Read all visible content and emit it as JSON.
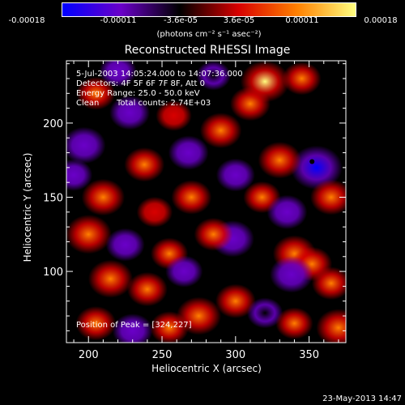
{
  "chart_data": {
    "type": "heatmap",
    "title": "Reconstructed RHESSI Image",
    "xlabel": "Heliocentric X (arcsec)",
    "ylabel": "Heliocentric Y (arcsec)",
    "xlim": [
      185,
      375
    ],
    "ylim": [
      52,
      242
    ],
    "xticks": [
      200,
      250,
      300,
      350
    ],
    "yticks": [
      100,
      150,
      200
    ],
    "colorbar": {
      "ticks": [
        "-0.00018",
        "-0.00011",
        "-3.6e-05",
        "3.6e-05",
        "0.00011",
        "0.00018"
      ],
      "range": [
        -0.00018,
        0.00018
      ],
      "unit": "(photons cm⁻² s⁻¹ asec⁻²)",
      "colormap": [
        "#0000ff",
        "#6a00c8",
        "#000000",
        "#d80000",
        "#ff8000",
        "#ffff80"
      ]
    },
    "annotations": {
      "time_range": "5-Jul-2003 14:05:24.000 to 14:07:36.000",
      "detectors": "Detectors: 4F 5F 6F 7F 8F, Att 0",
      "energy_range": "Energy Range: 25.0 - 50.0 keV",
      "clean": "Clean",
      "total_counts": "Total counts: 2.74E+03",
      "peak": "Position of Peak = [324,227]"
    },
    "peak_marker": [
      352,
      174
    ],
    "blobs": [
      {
        "x": 197,
        "y": 185,
        "v": -0.00012
      },
      {
        "x": 205,
        "y": 220,
        "v": 9e-05
      },
      {
        "x": 210,
        "y": 150,
        "v": 0.00012
      },
      {
        "x": 228,
        "y": 207,
        "v": -0.0001
      },
      {
        "x": 238,
        "y": 172,
        "v": 0.0001
      },
      {
        "x": 258,
        "y": 205,
        "v": 7e-05
      },
      {
        "x": 268,
        "y": 180,
        "v": -0.0001
      },
      {
        "x": 290,
        "y": 195,
        "v": 0.00011
      },
      {
        "x": 310,
        "y": 213,
        "v": 0.0001
      },
      {
        "x": 320,
        "y": 228,
        "v": 0.00016
      },
      {
        "x": 345,
        "y": 230,
        "v": 9e-05
      },
      {
        "x": 355,
        "y": 170,
        "v": -0.00018
      },
      {
        "x": 330,
        "y": 175,
        "v": 0.00012
      },
      {
        "x": 318,
        "y": 150,
        "v": 8e-05
      },
      {
        "x": 335,
        "y": 140,
        "v": -0.0001
      },
      {
        "x": 365,
        "y": 150,
        "v": 0.00011
      },
      {
        "x": 245,
        "y": 140,
        "v": 7e-05
      },
      {
        "x": 270,
        "y": 150,
        "v": 0.0001
      },
      {
        "x": 200,
        "y": 125,
        "v": 0.00014
      },
      {
        "x": 225,
        "y": 118,
        "v": -9e-05
      },
      {
        "x": 255,
        "y": 112,
        "v": 8e-05
      },
      {
        "x": 298,
        "y": 122,
        "v": -0.00012
      },
      {
        "x": 285,
        "y": 125,
        "v": 9e-05
      },
      {
        "x": 340,
        "y": 112,
        "v": 0.00012
      },
      {
        "x": 352,
        "y": 105,
        "v": 0.0001
      },
      {
        "x": 338,
        "y": 98,
        "v": -0.00012
      },
      {
        "x": 365,
        "y": 92,
        "v": 9e-05
      },
      {
        "x": 215,
        "y": 95,
        "v": 0.00013
      },
      {
        "x": 240,
        "y": 88,
        "v": 0.0001
      },
      {
        "x": 265,
        "y": 100,
        "v": -8e-05
      },
      {
        "x": 275,
        "y": 70,
        "v": 0.00013
      },
      {
        "x": 300,
        "y": 80,
        "v": 0.0001
      },
      {
        "x": 320,
        "y": 72,
        "v": -7e-05
      },
      {
        "x": 340,
        "y": 65,
        "v": 8e-05
      },
      {
        "x": 370,
        "y": 62,
        "v": 0.00013
      },
      {
        "x": 205,
        "y": 65,
        "v": 0.0001
      },
      {
        "x": 230,
        "y": 60,
        "v": -0.0001
      },
      {
        "x": 255,
        "y": 62,
        "v": 9e-05
      },
      {
        "x": 220,
        "y": 235,
        "v": -8e-05
      },
      {
        "x": 285,
        "y": 232,
        "v": -6e-05
      },
      {
        "x": 300,
        "y": 165,
        "v": -9e-05
      },
      {
        "x": 190,
        "y": 165,
        "v": -8e-05
      }
    ]
  },
  "timestamp": "23-May-2013 14:47"
}
